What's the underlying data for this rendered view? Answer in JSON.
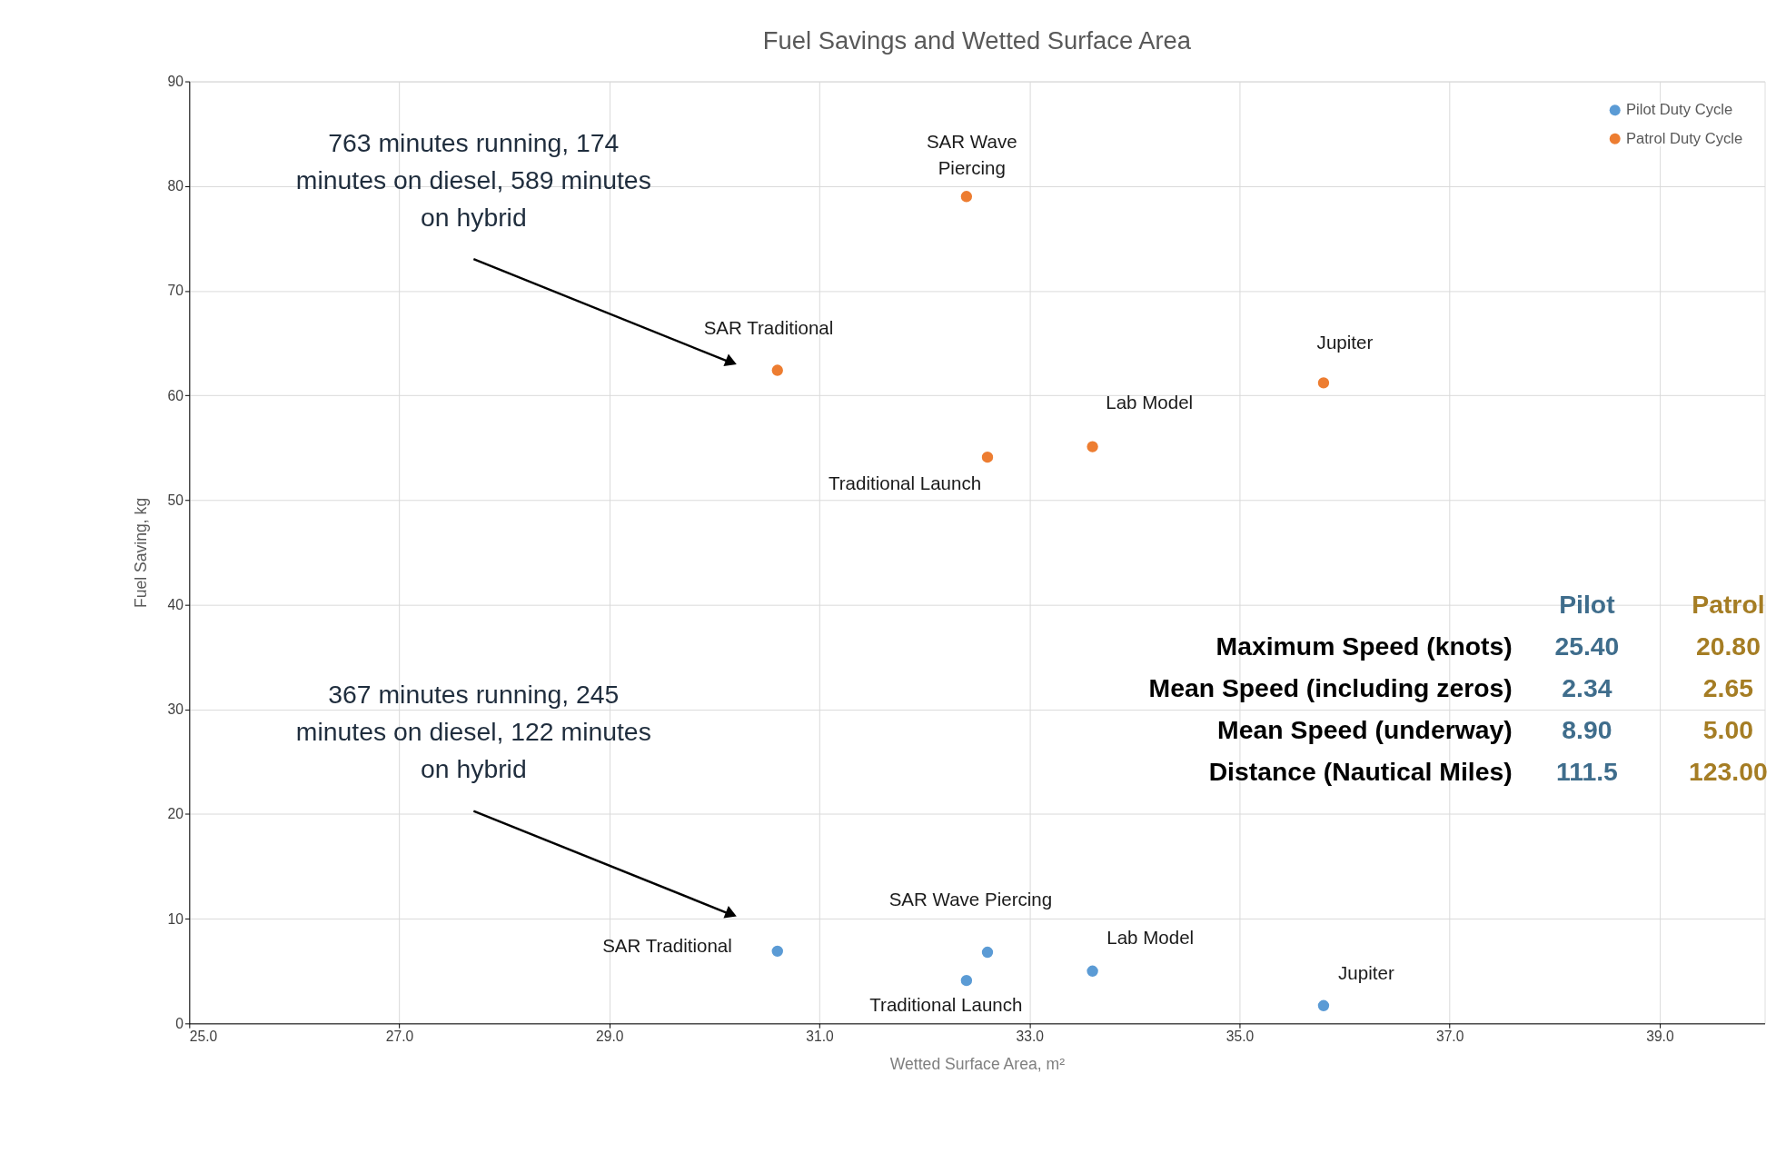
{
  "chart_data": {
    "type": "scatter",
    "title": "Fuel Savings and Wetted Surface Area",
    "xlabel": "Wetted Surface Area, m²",
    "ylabel": "Fuel Saving, kg",
    "xlim": [
      25,
      40
    ],
    "xticks": [
      {
        "value": 25,
        "label": "25.0"
      },
      {
        "value": 27,
        "label": "27.0"
      },
      {
        "value": 29,
        "label": "29.0"
      },
      {
        "value": 31,
        "label": "31.0"
      },
      {
        "value": 33,
        "label": "33.0"
      },
      {
        "value": 35,
        "label": "35.0"
      },
      {
        "value": 37,
        "label": "37.0"
      },
      {
        "value": 39,
        "label": "39.0"
      }
    ],
    "ylim": [
      0,
      90
    ],
    "yticks": [
      0,
      10,
      20,
      30,
      40,
      50,
      60,
      70,
      80,
      90
    ],
    "grid": true,
    "legend": "top right",
    "marker": "circle",
    "series": [
      {
        "name": "Pilot Duty Cycle",
        "color": "#5b9bd5",
        "x": [
          30.6,
          32.6,
          32.4,
          33.6,
          35.8
        ],
        "values": [
          6.9,
          6.8,
          4.1,
          5.0,
          1.7
        ]
      },
      {
        "name": "Patrol Duty Cycle",
        "color": "#ed7d31",
        "x": [
          30.6,
          32.4,
          32.6,
          33.6,
          35.8
        ],
        "values": [
          62.4,
          79.0,
          54.1,
          55.1,
          61.2
        ]
      }
    ],
    "annotations": [
      "763 minutes running, 174 minutes on diesel, 589 minutes on hybrid",
      "367 minutes running, 245 minutes on diesel, 122 minutes on hybrid",
      {
        "text": "SAR Traditional",
        "x": 30.6,
        "y": 62.4
      },
      {
        "text": "SAR Wave Piercing",
        "x": 32.4,
        "y": 79.0
      },
      {
        "text": "Traditional Launch",
        "x": 32.6,
        "y": 54.1
      },
      {
        "text": "Lab Model",
        "x": 33.6,
        "y": 55.1
      },
      {
        "text": "Jupiter",
        "x": 35.8,
        "y": 61.2
      },
      {
        "text": "SAR Traditional",
        "x": 30.6,
        "y": 6.9
      },
      {
        "text": "SAR Wave Piercing",
        "x": 32.6,
        "y": 6.8
      },
      {
        "text": "Traditional Launch",
        "x": 32.4,
        "y": 4.1
      },
      {
        "text": "Lab Model",
        "x": 33.6,
        "y": 5.0
      },
      {
        "text": "Jupiter",
        "x": 35.8,
        "y": 1.7
      },
      "Pilot",
      "Patrol",
      "Maximum Speed (knots)",
      "25.40",
      "20.80",
      "Mean Speed (including zeros)",
      "2.34",
      "2.65",
      "Mean Speed (underway)",
      "8.90",
      "5.00",
      "Distance (Nautical Miles)",
      "111.5",
      "123.00"
    ]
  }
}
